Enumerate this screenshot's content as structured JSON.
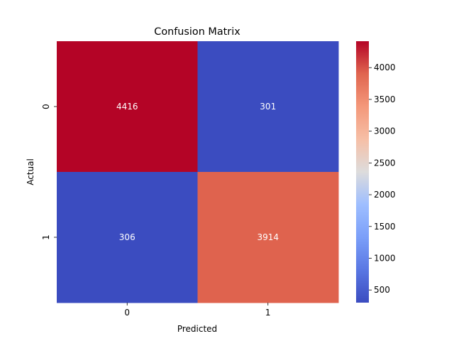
{
  "chart_data": {
    "type": "heatmap",
    "title": "Confusion Matrix",
    "xlabel": "Predicted",
    "ylabel": "Actual",
    "x_categories": [
      "0",
      "1"
    ],
    "y_categories": [
      "0",
      "1"
    ],
    "values": [
      [
        4416,
        301
      ],
      [
        306,
        3914
      ]
    ],
    "colormap": "coolwarm",
    "vmin": 301,
    "vmax": 4416,
    "colorbar_ticks": [
      500,
      1000,
      1500,
      2000,
      2500,
      3000,
      3500,
      4000
    ],
    "colorbar_tick_labels": [
      "500",
      "1000",
      "1500",
      "2000",
      "2500",
      "3000",
      "3500",
      "4000"
    ],
    "annotation_color": "#ffffff"
  }
}
